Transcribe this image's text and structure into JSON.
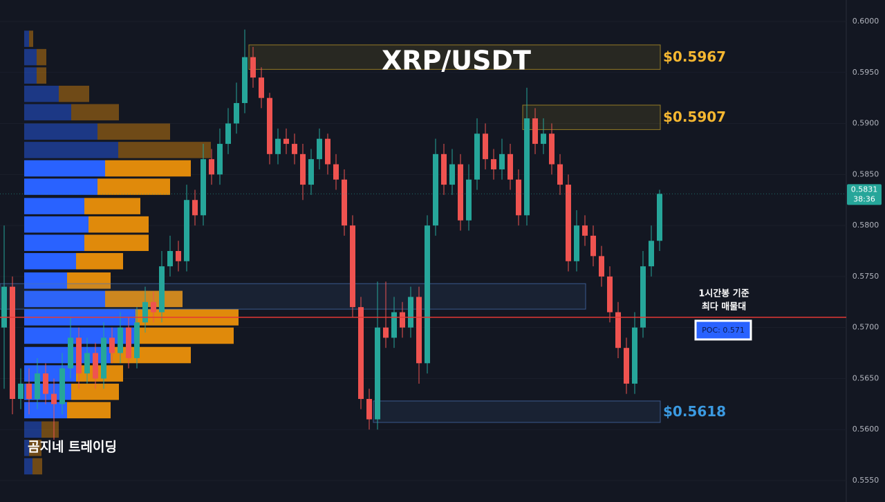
{
  "chart_data": {
    "type": "candlestick",
    "title": "XRP/USDT",
    "watermark": "곰지네 트레이딩",
    "up_color": "#26a69a",
    "down_color": "#ef5350",
    "open": [
      0.57,
      0.574,
      0.563,
      0.5645,
      0.563,
      0.5655,
      0.5635,
      0.5625,
      0.566,
      0.569,
      0.5655,
      0.5675,
      0.565,
      0.569,
      0.5675,
      0.57,
      0.567,
      0.5705,
      0.5725,
      0.5715,
      0.576,
      0.5775,
      0.5765,
      0.5825,
      0.581,
      0.5865,
      0.585,
      0.588,
      0.59,
      0.592,
      0.5965,
      0.5945,
      0.5925,
      0.587,
      0.5885,
      0.588,
      0.587,
      0.584,
      0.5865,
      0.5885,
      0.586,
      0.5845,
      0.58,
      0.572,
      0.563,
      0.561,
      0.57,
      0.569,
      0.5715,
      0.57,
      0.573,
      0.5665,
      0.58,
      0.587,
      0.584,
      0.586,
      0.5805,
      0.5845,
      0.589,
      0.5865,
      0.5855,
      0.587,
      0.5845,
      0.581,
      0.5905,
      0.588,
      0.589,
      0.586,
      0.584,
      0.5765,
      0.58,
      0.579,
      0.577,
      0.575,
      0.5715,
      0.568,
      0.5645,
      0.57,
      0.576,
      0.5785
    ],
    "high": [
      0.58,
      0.575,
      0.566,
      0.566,
      0.567,
      0.5665,
      0.565,
      0.5675,
      0.571,
      0.57,
      0.569,
      0.5685,
      0.5705,
      0.57,
      0.5715,
      0.571,
      0.572,
      0.574,
      0.5735,
      0.5775,
      0.579,
      0.5785,
      0.584,
      0.5835,
      0.588,
      0.5875,
      0.5895,
      0.5915,
      0.594,
      0.5992,
      0.5975,
      0.5955,
      0.593,
      0.5895,
      0.5895,
      0.589,
      0.588,
      0.5875,
      0.5895,
      0.589,
      0.587,
      0.5855,
      0.581,
      0.573,
      0.564,
      0.5745,
      0.5745,
      0.573,
      0.5725,
      0.574,
      0.574,
      0.581,
      0.5885,
      0.588,
      0.5875,
      0.587,
      0.586,
      0.5905,
      0.59,
      0.5875,
      0.5885,
      0.588,
      0.5855,
      0.5935,
      0.5915,
      0.5905,
      0.59,
      0.587,
      0.585,
      0.5815,
      0.581,
      0.58,
      0.578,
      0.576,
      0.5725,
      0.569,
      0.5715,
      0.5775,
      0.58,
      0.5835
    ],
    "low": [
      0.564,
      0.5615,
      0.562,
      0.5615,
      0.562,
      0.5625,
      0.559,
      0.5615,
      0.565,
      0.564,
      0.5645,
      0.564,
      0.564,
      0.5665,
      0.5665,
      0.566,
      0.566,
      0.5695,
      0.5705,
      0.5705,
      0.575,
      0.5755,
      0.5755,
      0.58,
      0.58,
      0.584,
      0.584,
      0.587,
      0.589,
      0.591,
      0.5935,
      0.5915,
      0.586,
      0.586,
      0.587,
      0.586,
      0.5825,
      0.583,
      0.5855,
      0.585,
      0.5835,
      0.579,
      0.571,
      0.562,
      0.56,
      0.56,
      0.568,
      0.568,
      0.569,
      0.569,
      0.5645,
      0.5655,
      0.579,
      0.583,
      0.583,
      0.5795,
      0.5795,
      0.5835,
      0.5855,
      0.5845,
      0.5845,
      0.5835,
      0.58,
      0.58,
      0.587,
      0.587,
      0.585,
      0.583,
      0.5755,
      0.5755,
      0.578,
      0.576,
      0.574,
      0.5705,
      0.567,
      0.5635,
      0.5635,
      0.569,
      0.575,
      0.5775
    ],
    "close": [
      0.574,
      0.563,
      0.5645,
      0.563,
      0.5655,
      0.5635,
      0.5625,
      0.566,
      0.569,
      0.5655,
      0.5675,
      0.565,
      0.569,
      0.5675,
      0.57,
      0.567,
      0.5705,
      0.5725,
      0.5715,
      0.576,
      0.5775,
      0.5765,
      0.5825,
      0.581,
      0.5865,
      0.585,
      0.588,
      0.59,
      0.592,
      0.5965,
      0.5945,
      0.5925,
      0.587,
      0.5885,
      0.588,
      0.587,
      0.584,
      0.5865,
      0.5885,
      0.586,
      0.5845,
      0.58,
      0.572,
      0.563,
      0.561,
      0.57,
      0.569,
      0.5715,
      0.57,
      0.573,
      0.5665,
      0.58,
      0.587,
      0.584,
      0.586,
      0.5805,
      0.5845,
      0.589,
      0.5865,
      0.5855,
      0.587,
      0.5845,
      0.581,
      0.5905,
      0.588,
      0.589,
      0.586,
      0.584,
      0.5765,
      0.58,
      0.579,
      0.577,
      0.575,
      0.5715,
      0.568,
      0.5645,
      0.57,
      0.576,
      0.5785,
      0.5831
    ],
    "ylim": [
      0.5529,
      0.6021
    ],
    "yticks": [
      {
        "value": 0.6,
        "label": "0.6000"
      },
      {
        "value": 0.595,
        "label": "0.5950"
      },
      {
        "value": 0.59,
        "label": "0.5900"
      },
      {
        "value": 0.585,
        "label": "0.5850"
      },
      {
        "value": 0.58,
        "label": "0.5800"
      },
      {
        "value": 0.575,
        "label": "0.5750"
      },
      {
        "value": 0.57,
        "label": "0.5700"
      },
      {
        "value": 0.565,
        "label": "0.5650"
      },
      {
        "value": 0.56,
        "label": "0.5600"
      },
      {
        "value": 0.555,
        "label": "0.5550"
      }
    ],
    "last_price": 0.5831,
    "countdown": "38:36",
    "profile": {
      "prices": [
        0.5983,
        0.5965,
        0.5947,
        0.5929,
        0.5911,
        0.5892,
        0.5874,
        0.5856,
        0.5838,
        0.5819,
        0.5801,
        0.5783,
        0.5765,
        0.5746,
        0.5728,
        0.571,
        0.5692,
        0.5673,
        0.5655,
        0.5637,
        0.5619,
        0.56,
        0.5582,
        0.5564
      ],
      "buy": [
        7,
        18,
        18,
        50,
        68,
        106,
        136,
        117,
        106,
        87,
        93,
        87,
        75,
        62,
        117,
        161,
        161,
        125,
        75,
        68,
        62,
        25,
        7,
        12
      ],
      "sell": [
        6,
        14,
        14,
        44,
        69,
        105,
        134,
        124,
        105,
        81,
        87,
        93,
        68,
        63,
        112,
        149,
        142,
        116,
        68,
        69,
        63,
        25,
        18,
        14
      ],
      "buy_color": "#2962ff",
      "sell_color": "#e08a0b",
      "value_area": [
        0.5619,
        0.5856
      ]
    },
    "zones": [
      {
        "high": 0.5977,
        "low": 0.5953,
        "start": 30,
        "end": 79,
        "color": "#c9a227",
        "label": "$0.5967"
      },
      {
        "high": 0.5918,
        "low": 0.5894,
        "start": 63,
        "end": 79,
        "color": "#c9a227",
        "label": "$0.5907"
      },
      {
        "high": 0.5743,
        "low": 0.5718,
        "start": 0,
        "end": 70,
        "color": "#4a74b8"
      },
      {
        "high": 0.5628,
        "low": 0.5607,
        "start": 45,
        "end": 79,
        "color": "#4a74b8",
        "label": "$0.5618"
      }
    ],
    "poc": {
      "value": 0.571,
      "label": "POC: 0.571",
      "color": "#e53935"
    },
    "annotation": [
      "1시간봉 기준",
      "최다 매물대"
    ]
  }
}
